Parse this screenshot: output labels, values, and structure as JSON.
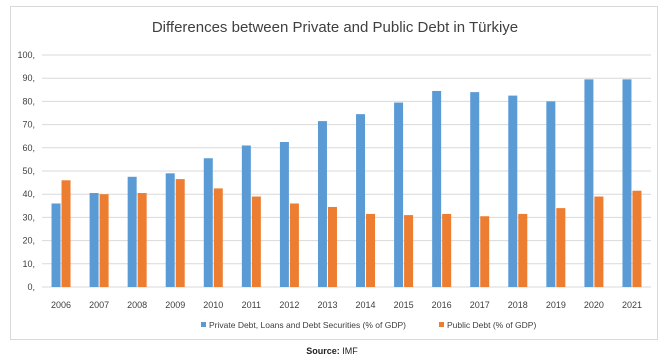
{
  "chart_data": {
    "type": "bar",
    "title": "Differences between Private and Public Debt in Türkiye",
    "categories": [
      "2006",
      "2007",
      "2008",
      "2009",
      "2010",
      "2011",
      "2012",
      "2013",
      "2014",
      "2015",
      "2016",
      "2017",
      "2018",
      "2019",
      "2020",
      "2021"
    ],
    "series": [
      {
        "name": "Private Debt, Loans and Debt Securities (% of GDP)",
        "color": "#5b9bd5",
        "values": [
          36,
          40.5,
          47.5,
          49,
          55.5,
          61,
          62.5,
          71.5,
          74.5,
          79.5,
          84.5,
          84,
          82.5,
          80,
          89.5,
          89.5
        ]
      },
      {
        "name": "Public Debt (% of GDP)",
        "color": "#ed7d31",
        "values": [
          46,
          40,
          40.5,
          46.5,
          42.5,
          39,
          36,
          34.5,
          31.5,
          31,
          31.5,
          30.5,
          31.5,
          34,
          39,
          41.5
        ]
      }
    ],
    "ylim": [
      0,
      100
    ],
    "yticks": [
      0,
      10,
      20,
      30,
      40,
      50,
      60,
      70,
      80,
      90,
      100
    ],
    "ytick_labels": [
      "0,",
      "10,",
      "20,",
      "30,",
      "40,",
      "50,",
      "60,",
      "70,",
      "80,",
      "90,",
      "100,"
    ],
    "xlabel": "",
    "ylabel": "",
    "grid": true,
    "legend": "bottom"
  },
  "source": {
    "label": "Source:",
    "text": "IMF"
  }
}
